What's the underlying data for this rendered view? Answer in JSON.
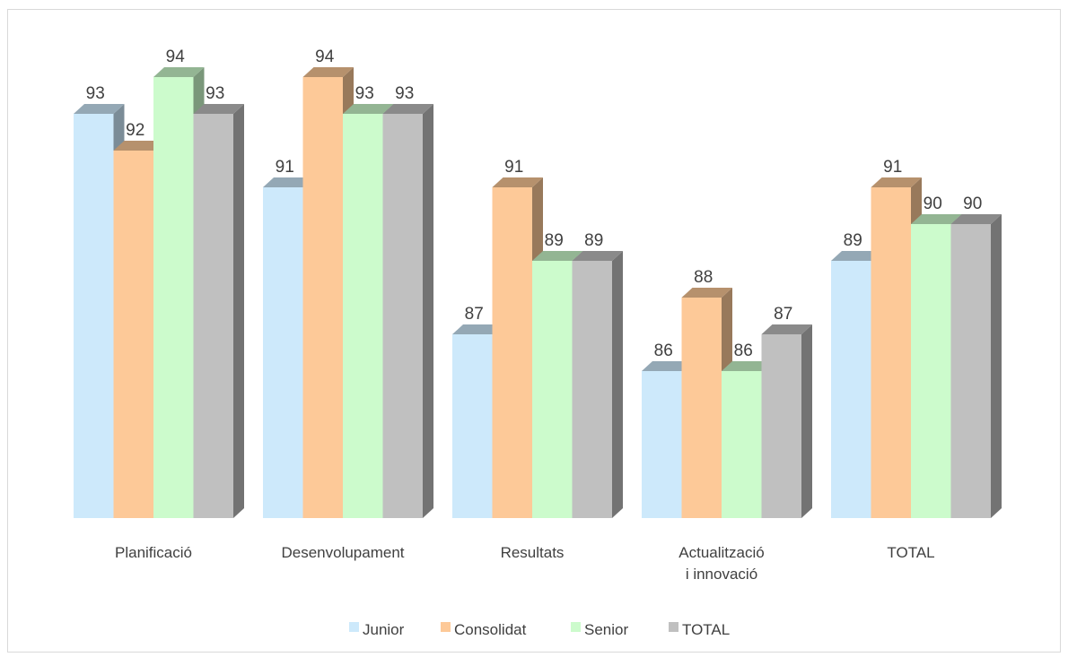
{
  "chart_data": {
    "type": "bar",
    "categories": [
      "Planificació",
      "Desenvolupament",
      "Resultats",
      "Actualització i innovació",
      "TOTAL"
    ],
    "series": [
      {
        "name": "Junior",
        "values": [
          93,
          91,
          87,
          86,
          89
        ],
        "color": "#cde9fb"
      },
      {
        "name": "Consolidat",
        "values": [
          92,
          94,
          91,
          88,
          91
        ],
        "color": "#fdc998"
      },
      {
        "name": "Senior",
        "values": [
          94,
          93,
          89,
          86,
          90
        ],
        "color": "#ccfbcc"
      },
      {
        "name": "TOTAL",
        "values": [
          93,
          93,
          89,
          87,
          90
        ],
        "color": "#c0c0c0"
      }
    ],
    "ylim": [
      82,
      95
    ],
    "style": "3d-clustered-column",
    "data_labels": true,
    "gridlines": false,
    "legend_position": "bottom"
  }
}
